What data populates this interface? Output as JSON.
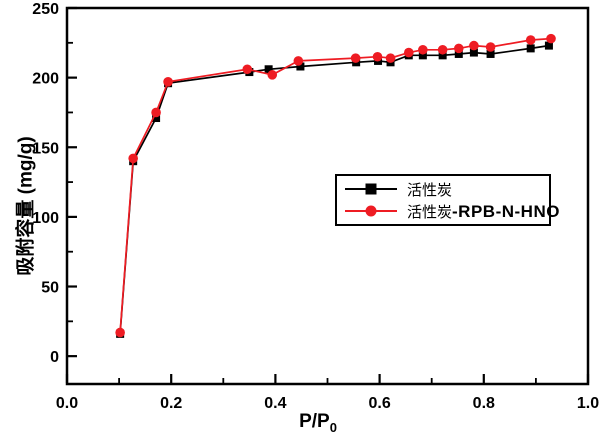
{
  "chart_data": {
    "type": "line",
    "title": "",
    "x_axis": {
      "label_base": "P/P",
      "label_sub": "0",
      "range": [
        0.0,
        1.0
      ],
      "major_ticks": [
        {
          "v": 0.0,
          "label": "0.0"
        },
        {
          "v": 0.2,
          "label": "0.2"
        },
        {
          "v": 0.4,
          "label": "0.4"
        },
        {
          "v": 0.6,
          "label": "0.6"
        },
        {
          "v": 0.8,
          "label": "0.8"
        },
        {
          "v": 1.0,
          "label": "1.0"
        }
      ],
      "minor_ticks": [
        0.1,
        0.3,
        0.5,
        0.7,
        0.9
      ]
    },
    "y_axis": {
      "label": "吸附容量 (mg/g)",
      "range": [
        -20,
        250
      ],
      "major_ticks": [
        {
          "v": 0,
          "label": "0"
        },
        {
          "v": 50,
          "label": "50"
        },
        {
          "v": 100,
          "label": "100"
        },
        {
          "v": 150,
          "label": "150"
        },
        {
          "v": 200,
          "label": "200"
        },
        {
          "v": 250,
          "label": "250"
        }
      ],
      "minor_ticks": [
        25,
        75,
        125,
        175,
        225
      ]
    },
    "legend": {
      "position": "center-right",
      "border": true
    },
    "series": [
      {
        "name": "活性炭",
        "name_suffix": "",
        "color": "#000000",
        "marker": "square",
        "points": [
          [
            0.102,
            16
          ],
          [
            0.127,
            140
          ],
          [
            0.171,
            171
          ],
          [
            0.194,
            196
          ],
          [
            0.35,
            204
          ],
          [
            0.387,
            206
          ],
          [
            0.448,
            208
          ],
          [
            0.555,
            211
          ],
          [
            0.597,
            212
          ],
          [
            0.621,
            211
          ],
          [
            0.656,
            216
          ],
          [
            0.683,
            216
          ],
          [
            0.721,
            216
          ],
          [
            0.752,
            217
          ],
          [
            0.781,
            218
          ],
          [
            0.813,
            217
          ],
          [
            0.89,
            221
          ],
          [
            0.925,
            223
          ]
        ]
      },
      {
        "name": "活性炭",
        "name_suffix": "-RPB-N-HNO",
        "color": "#ee1c23",
        "marker": "circle",
        "points": [
          [
            0.102,
            17
          ],
          [
            0.127,
            142
          ],
          [
            0.171,
            175
          ],
          [
            0.194,
            197
          ],
          [
            0.346,
            206
          ],
          [
            0.394,
            202
          ],
          [
            0.444,
            212
          ],
          [
            0.554,
            214
          ],
          [
            0.596,
            215
          ],
          [
            0.621,
            214
          ],
          [
            0.656,
            218
          ],
          [
            0.683,
            220
          ],
          [
            0.721,
            220
          ],
          [
            0.752,
            221
          ],
          [
            0.781,
            223
          ],
          [
            0.813,
            222
          ],
          [
            0.89,
            227
          ],
          [
            0.929,
            228
          ]
        ]
      }
    ]
  }
}
